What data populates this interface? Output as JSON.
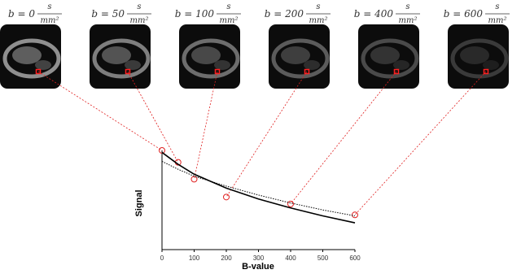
{
  "chart_data": {
    "type": "scatter",
    "image_labels": [
      "b = 0",
      "b = 50",
      "b = 100",
      "b = 200",
      "b = 400",
      "b = 600"
    ],
    "unit_numerator": "s",
    "unit_denominator": "mm²",
    "x_label": "B-value",
    "y_label": "Signal",
    "xlim": [
      0,
      600
    ],
    "xticks": [
      0,
      100,
      200,
      300,
      400,
      500,
      600
    ],
    "ylim": [
      0,
      1
    ],
    "series": [
      {
        "style": "markers",
        "color": "#e02020",
        "x": [
          0,
          50,
          100,
          200,
          400,
          600
        ],
        "values": [
          1.0,
          0.88,
          0.71,
          0.53,
          0.46,
          0.35
        ]
      },
      {
        "style": "solid",
        "color": "#000000",
        "x": [
          0,
          50,
          100,
          200,
          300,
          400,
          500,
          600
        ],
        "values": [
          0.98,
          0.86,
          0.76,
          0.62,
          0.51,
          0.42,
          0.34,
          0.27
        ]
      },
      {
        "style": "dotted",
        "color": "#000000",
        "x": [
          0,
          50,
          100,
          200,
          300,
          400,
          500,
          600
        ],
        "values": [
          0.89,
          0.81,
          0.74,
          0.64,
          0.55,
          0.47,
          0.4,
          0.34
        ]
      }
    ]
  }
}
